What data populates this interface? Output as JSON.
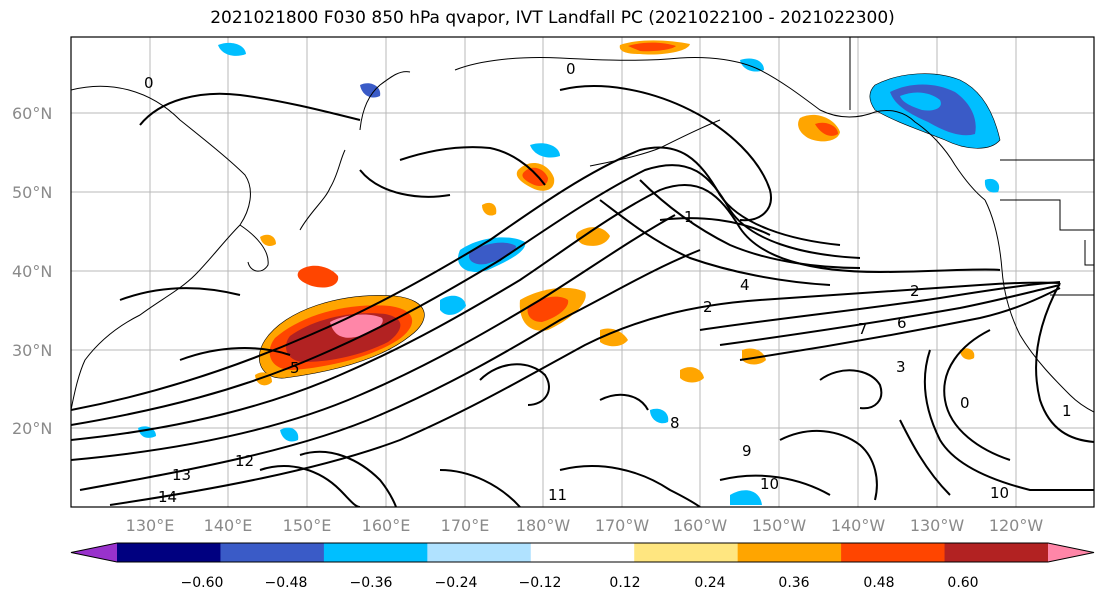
{
  "title": "2021021800 F030 850 hPa qvapor, IVT Landfall PC (2021022100 - 2021022300)",
  "map": {
    "lat_labels": [
      "60°N",
      "50°N",
      "40°N",
      "30°N",
      "20°N"
    ],
    "lon_labels": [
      "130°E",
      "140°E",
      "150°E",
      "160°E",
      "170°E",
      "180°W",
      "170°W",
      "160°W",
      "150°W",
      "140°W",
      "130°W",
      "120°W"
    ],
    "contour_labels": [
      "0",
      "0",
      "1",
      "4",
      "2",
      "7",
      "6",
      "2",
      "3",
      "5",
      "14",
      "12",
      "13",
      "8",
      "9",
      "10",
      "10",
      "11",
      "0",
      "1"
    ]
  },
  "colorbar": {
    "colors": [
      "#9932cc",
      "#000080",
      "#3a5bc7",
      "#00bfff",
      "#b0e2ff",
      "#ffffff",
      "#ffe680",
      "#ffa500",
      "#ff4500",
      "#b22222",
      "#ff86a8"
    ],
    "labels": [
      "−0.60",
      "−0.48",
      "−0.36",
      "−0.24",
      "−0.12",
      "0.12",
      "0.24",
      "0.36",
      "0.48",
      "0.60"
    ]
  }
}
